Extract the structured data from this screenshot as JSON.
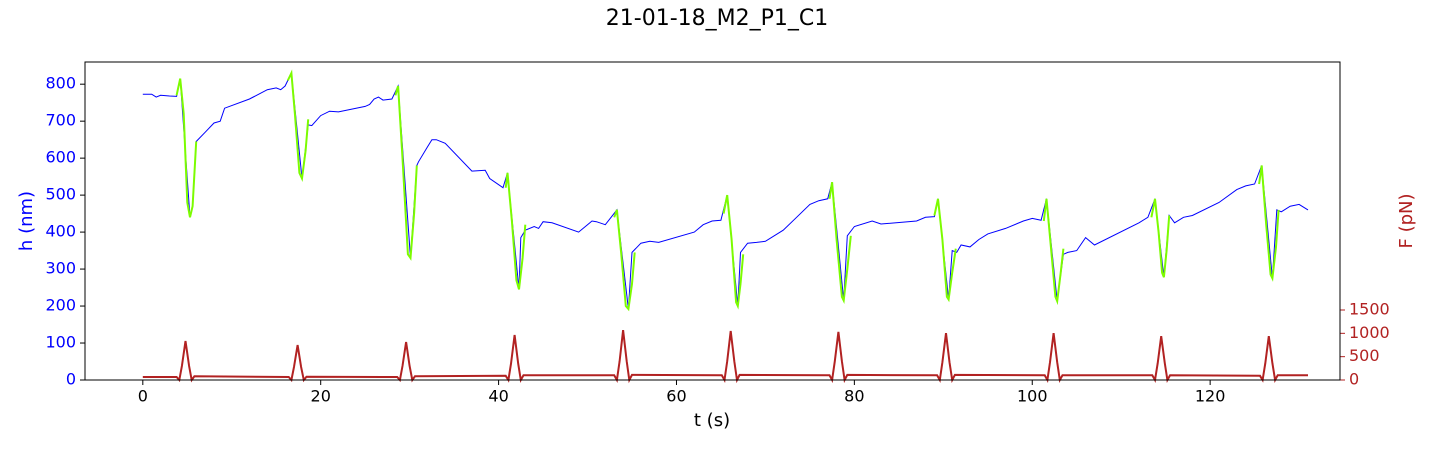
{
  "chart_data": {
    "type": "line",
    "title": "21-01-18_M2_P1_C1",
    "xlabel": "t (s)",
    "ylabel": "h (nm)",
    "y2label": "F (pN)",
    "ylabel_color": "#0000ff",
    "y2label_color": "#b22222",
    "xlim": [
      -6.5,
      134.6
    ],
    "ylim": [
      0,
      860
    ],
    "y2lim": [
      0,
      6814
    ],
    "xticks": [
      0,
      20,
      40,
      60,
      80,
      100,
      120
    ],
    "yticks": [
      0,
      100,
      200,
      300,
      400,
      500,
      600,
      700,
      800
    ],
    "y2ticks": [
      0,
      500,
      1000,
      1500
    ],
    "series": [
      {
        "color": "#0000ff",
        "x": [
          0,
          1,
          1.5,
          2,
          3,
          3.8,
          4.2,
          5.3,
          5.6,
          6,
          7,
          8,
          8.7,
          9.2,
          12,
          14,
          15,
          15.5,
          16,
          16.7,
          17.9,
          18.6,
          19,
          20,
          21,
          22,
          25,
          25.5,
          26,
          26.5,
          27,
          28,
          28.7,
          30.1,
          30.8,
          31,
          32,
          32.5,
          33,
          34,
          37,
          38.5,
          39,
          40.5,
          41,
          42.3,
          42.5,
          43,
          44,
          44.5,
          45,
          46,
          49,
          50,
          50.5,
          51,
          52,
          53.3,
          54.6,
          55,
          56,
          57,
          58,
          62,
          63,
          64,
          65,
          65.7,
          66.9,
          67.2,
          68,
          69,
          70,
          72,
          73.5,
          75,
          76,
          77,
          77.5,
          78.8,
          79.2,
          80,
          82,
          83,
          87,
          88,
          89,
          89.4,
          90.6,
          91,
          91.5,
          92,
          93,
          94,
          95,
          97,
          99,
          100,
          101,
          101.6,
          102.8,
          103.5,
          104,
          105,
          106,
          107,
          112,
          113,
          113.8,
          114.8,
          115.4,
          116,
          117,
          118,
          121,
          123,
          124,
          125,
          125.8,
          127,
          127.5,
          128,
          129,
          130,
          131
        ],
        "values": [
          773,
          773,
          765,
          770,
          768,
          767,
          815,
          440,
          470,
          645,
          670,
          695,
          700,
          735,
          760,
          785,
          790,
          785,
          795,
          830,
          545,
          690,
          688,
          715,
          727,
          725,
          740,
          745,
          760,
          765,
          757,
          760,
          795,
          330,
          580,
          590,
          630,
          650,
          650,
          640,
          565,
          567,
          545,
          520,
          560,
          245,
          385,
          405,
          415,
          410,
          428,
          425,
          400,
          420,
          430,
          428,
          420,
          460,
          192,
          345,
          370,
          375,
          372,
          400,
          420,
          430,
          432,
          500,
          200,
          345,
          370,
          372,
          375,
          405,
          440,
          475,
          485,
          490,
          535,
          215,
          390,
          415,
          430,
          422,
          430,
          440,
          442,
          490,
          218,
          350,
          345,
          365,
          360,
          380,
          395,
          410,
          430,
          437,
          432,
          490,
          213,
          340,
          345,
          350,
          385,
          365,
          425,
          440,
          490,
          278,
          445,
          425,
          440,
          445,
          480,
          515,
          525,
          530,
          580,
          275,
          460,
          455,
          470,
          475,
          460
        ]
      },
      {
        "color": "#7cfc00",
        "x": [
          3.8,
          4.2,
          4.6,
          5,
          5.3,
          5.6,
          6,
          6.1,
          16.3,
          16.7,
          17.1,
          17.6,
          17.9,
          18.3,
          18.6,
          18.7,
          28.4,
          28.7,
          29.2,
          29.8,
          30.1,
          30.5,
          30.8,
          30.9,
          40.8,
          41,
          41.5,
          42,
          42.3,
          42.7,
          43,
          43.1,
          53,
          53.3,
          53.8,
          54.3,
          54.6,
          55,
          55.3,
          55.4,
          65.3,
          65.7,
          66.2,
          66.7,
          66.9,
          67.2,
          67.5,
          67.6,
          77.2,
          77.5,
          78,
          78.6,
          78.8,
          79.2,
          79.6,
          79.7,
          89,
          89.4,
          89.9,
          90.4,
          90.6,
          91,
          91.4,
          91.5,
          101.3,
          101.6,
          102.1,
          102.6,
          102.8,
          103.2,
          103.5,
          103.6,
          113.4,
          113.8,
          114.2,
          114.6,
          114.8,
          115.1,
          115.4,
          115.5,
          125.5,
          125.8,
          126.3,
          126.8,
          127,
          127.4,
          127.7
        ],
        "values": [
          770,
          815,
          720,
          480,
          440,
          470,
          645,
          null,
          810,
          830,
          720,
          560,
          545,
          620,
          705,
          null,
          770,
          795,
          600,
          340,
          330,
          450,
          580,
          null,
          520,
          560,
          430,
          270,
          245,
          330,
          420,
          null,
          440,
          460,
          340,
          200,
          192,
          260,
          345,
          null,
          450,
          500,
          380,
          210,
          200,
          260,
          340,
          null,
          490,
          535,
          380,
          225,
          215,
          300,
          390,
          null,
          445,
          490,
          380,
          225,
          218,
          290,
          355,
          null,
          430,
          490,
          360,
          225,
          213,
          290,
          355,
          null,
          440,
          490,
          400,
          290,
          278,
          350,
          445,
          null,
          530,
          580,
          420,
          285,
          275,
          360,
          460
        ]
      },
      {
        "color": "#b22222",
        "axis": "y2",
        "x": [
          0,
          3.8,
          4.1,
          4.4,
          4.8,
          5.2,
          5.5,
          5.8,
          16.4,
          16.7,
          17,
          17.4,
          17.8,
          18.1,
          18.4,
          28.6,
          28.9,
          29.2,
          29.6,
          30,
          30.3,
          30.6,
          40.8,
          41.1,
          41.4,
          41.8,
          42.2,
          42.5,
          42.8,
          53,
          53.3,
          53.6,
          54,
          54.4,
          54.7,
          55,
          65.1,
          65.4,
          65.7,
          66.1,
          66.5,
          66.8,
          67.1,
          77.2,
          77.5,
          77.8,
          78.2,
          78.6,
          78.9,
          79.2,
          89.3,
          89.6,
          89.9,
          90.3,
          90.7,
          91,
          91.3,
          101.4,
          101.7,
          102,
          102.4,
          102.8,
          103.1,
          103.4,
          113.5,
          113.8,
          114.1,
          114.5,
          114.9,
          115.2,
          115.5,
          125.6,
          125.9,
          126.2,
          126.6,
          127,
          127.3,
          127.6,
          131
        ],
        "values": [
          65,
          65,
          0,
          300,
          835,
          300,
          0,
          80,
          65,
          0,
          280,
          750,
          280,
          0,
          70,
          65,
          0,
          300,
          815,
          300,
          0,
          80,
          90,
          0,
          350,
          964,
          350,
          0,
          100,
          100,
          0,
          400,
          1070,
          400,
          0,
          110,
          100,
          0,
          400,
          1050,
          400,
          0,
          110,
          100,
          0,
          400,
          1030,
          400,
          0,
          110,
          100,
          0,
          380,
          1005,
          380,
          0,
          110,
          100,
          0,
          380,
          1005,
          380,
          0,
          100,
          100,
          0,
          360,
          940,
          360,
          0,
          100,
          90,
          0,
          360,
          940,
          360,
          0,
          100,
          100
        ]
      }
    ]
  }
}
